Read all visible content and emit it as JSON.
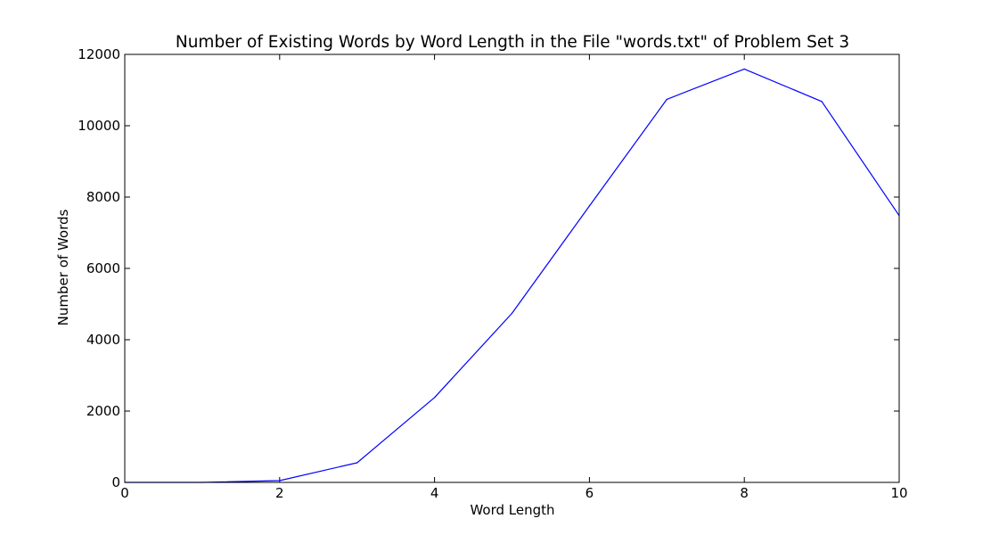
{
  "chart_data": {
    "type": "line",
    "title": "Number of Existing Words by Word Length in the File \"words.txt\" of Problem Set 3",
    "xlabel": "Word Length",
    "ylabel": "Number of Words",
    "xlim": [
      0,
      10
    ],
    "ylim": [
      0,
      12000
    ],
    "xticks": [
      0,
      2,
      4,
      6,
      8,
      10
    ],
    "yticks": [
      0,
      2000,
      4000,
      6000,
      8000,
      10000,
      12000
    ],
    "grid": false,
    "legend": "none",
    "series": [
      {
        "color": "#0000ff",
        "x": [
          0,
          1,
          2,
          3,
          4,
          5,
          6,
          7,
          8,
          9,
          10
        ],
        "y": [
          0,
          0,
          50,
          550,
          2380,
          4740,
          7750,
          10740,
          11590,
          10680,
          7480
        ]
      }
    ]
  }
}
